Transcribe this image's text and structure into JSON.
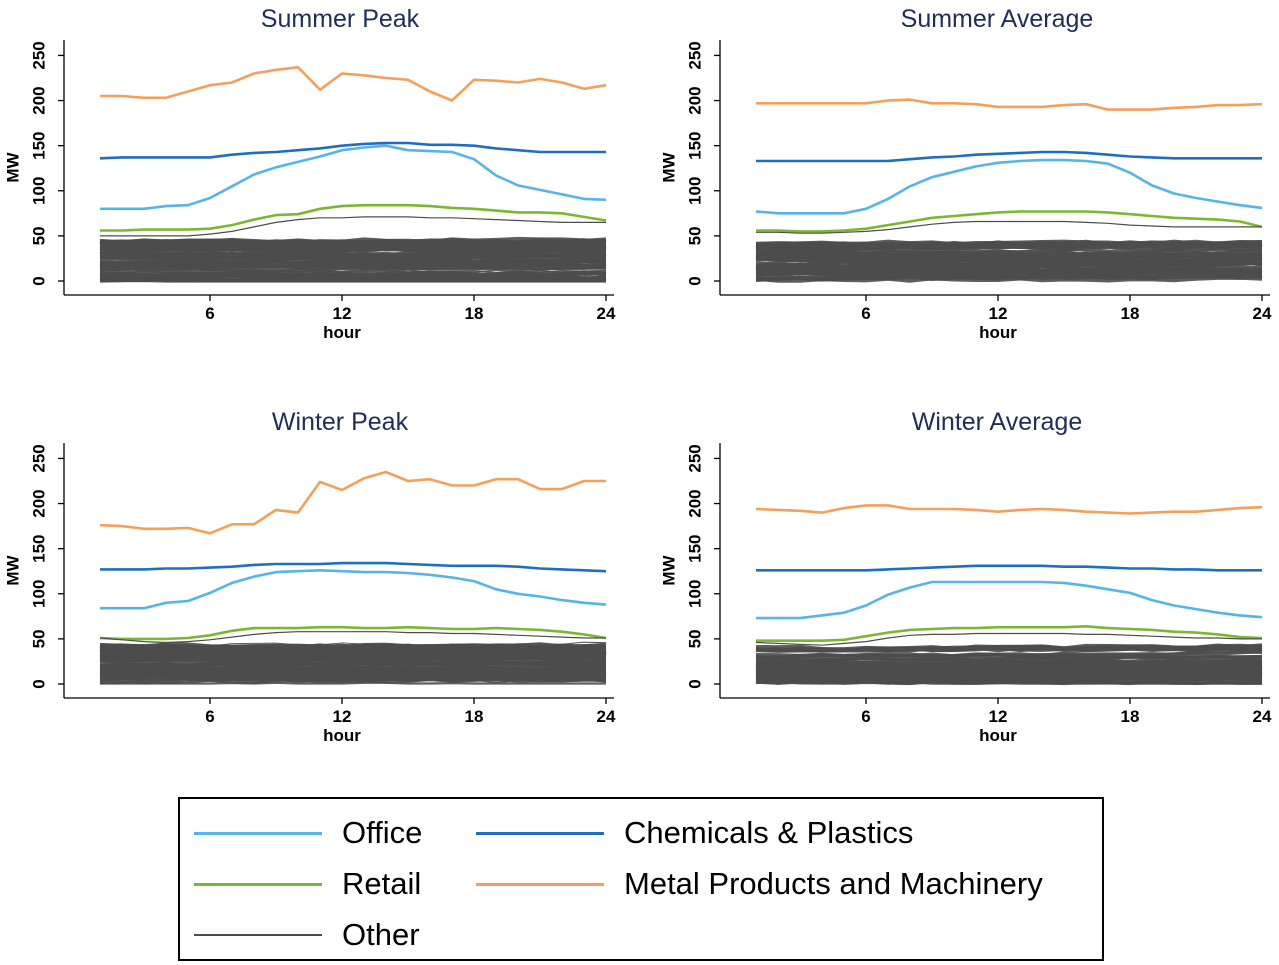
{
  "colors": {
    "Office": "#56b4e9",
    "Retail": "#7cb82f",
    "Other": "#4d4d4d",
    "Chemicals & Plastics": "#1f6fbf",
    "Metal Products and Machinery": "#f5a05a",
    "title": "#1e2d5c"
  },
  "legend": {
    "items": [
      {
        "label": "Office",
        "color": "#56b4e9"
      },
      {
        "label": "Retail",
        "color": "#7cb82f"
      },
      {
        "label": "Other",
        "color": "#4d4d4d"
      },
      {
        "label": "Chemicals & Plastics",
        "color": "#1f6fbf"
      },
      {
        "label": "Metal Products and Machinery",
        "color": "#f5a05a"
      }
    ]
  },
  "chart_data": [
    {
      "type": "line",
      "title": "Summer Peak",
      "xlabel": "hour",
      "ylabel": "MW",
      "xlim": [
        0,
        24
      ],
      "ylim": [
        0,
        250
      ],
      "xticks": [
        6,
        12,
        18,
        24
      ],
      "yticks": [
        0,
        50,
        100,
        150,
        200,
        250
      ],
      "grid": false,
      "x": [
        1,
        2,
        3,
        4,
        5,
        6,
        7,
        8,
        9,
        10,
        11,
        12,
        13,
        14,
        15,
        16,
        17,
        18,
        19,
        20,
        21,
        22,
        23,
        24
      ],
      "series": [
        {
          "name": "Metal Products and Machinery",
          "values": [
            205,
            205,
            203,
            203,
            210,
            217,
            220,
            230,
            234,
            237,
            212,
            230,
            228,
            225,
            223,
            210,
            200,
            223,
            222,
            220,
            224,
            220,
            213,
            217
          ]
        },
        {
          "name": "Chemicals & Plastics",
          "values": [
            136,
            137,
            137,
            137,
            137,
            137,
            140,
            142,
            143,
            145,
            147,
            150,
            152,
            153,
            153,
            151,
            151,
            150,
            147,
            145,
            143,
            143,
            143,
            143
          ]
        },
        {
          "name": "Office",
          "values": [
            80,
            80,
            80,
            83,
            84,
            92,
            105,
            118,
            126,
            132,
            138,
            145,
            148,
            150,
            145,
            144,
            143,
            135,
            117,
            106,
            101,
            96,
            91,
            90
          ]
        },
        {
          "name": "Retail",
          "values": [
            56,
            56,
            57,
            57,
            57,
            58,
            62,
            68,
            73,
            74,
            80,
            83,
            84,
            84,
            84,
            83,
            81,
            80,
            78,
            76,
            76,
            75,
            71,
            67
          ]
        },
        {
          "name": "Other",
          "values": [
            50,
            50,
            50,
            50,
            50,
            52,
            55,
            60,
            65,
            68,
            70,
            70,
            71,
            71,
            71,
            70,
            70,
            69,
            68,
            67,
            66,
            65,
            65,
            65
          ]
        }
      ],
      "other_band_max": 45
    },
    {
      "type": "line",
      "title": "Summer Average",
      "xlabel": "hour",
      "ylabel": "MW",
      "xlim": [
        0,
        24
      ],
      "ylim": [
        0,
        250
      ],
      "xticks": [
        6,
        12,
        18,
        24
      ],
      "yticks": [
        0,
        50,
        100,
        150,
        200,
        250
      ],
      "grid": false,
      "x": [
        1,
        2,
        3,
        4,
        5,
        6,
        7,
        8,
        9,
        10,
        11,
        12,
        13,
        14,
        15,
        16,
        17,
        18,
        19,
        20,
        21,
        22,
        23,
        24
      ],
      "series": [
        {
          "name": "Metal Products and Machinery",
          "values": [
            197,
            197,
            197,
            197,
            197,
            197,
            200,
            201,
            197,
            197,
            196,
            193,
            193,
            193,
            195,
            196,
            190,
            190,
            190,
            192,
            193,
            195,
            195,
            196
          ]
        },
        {
          "name": "Chemicals & Plastics",
          "values": [
            133,
            133,
            133,
            133,
            133,
            133,
            133,
            135,
            137,
            138,
            140,
            141,
            142,
            143,
            143,
            142,
            140,
            138,
            137,
            136,
            136,
            136,
            136,
            136
          ]
        },
        {
          "name": "Office",
          "values": [
            77,
            75,
            75,
            75,
            75,
            80,
            91,
            105,
            115,
            121,
            127,
            131,
            133,
            134,
            134,
            133,
            130,
            120,
            106,
            97,
            92,
            88,
            84,
            81
          ]
        },
        {
          "name": "Retail",
          "values": [
            56,
            56,
            55,
            55,
            56,
            58,
            62,
            66,
            70,
            72,
            74,
            76,
            77,
            77,
            77,
            77,
            76,
            74,
            72,
            70,
            69,
            68,
            66,
            60
          ]
        },
        {
          "name": "Other",
          "values": [
            54,
            54,
            53,
            53,
            54,
            55,
            57,
            60,
            63,
            65,
            66,
            66,
            66,
            66,
            66,
            65,
            64,
            62,
            61,
            60,
            60,
            60,
            60,
            60
          ]
        }
      ],
      "other_band_max": 42
    },
    {
      "type": "line",
      "title": "Winter Peak",
      "xlabel": "hour",
      "ylabel": "MW",
      "xlim": [
        0,
        24
      ],
      "ylim": [
        0,
        250
      ],
      "xticks": [
        6,
        12,
        18,
        24
      ],
      "yticks": [
        0,
        50,
        100,
        150,
        200,
        250
      ],
      "grid": false,
      "x": [
        1,
        2,
        3,
        4,
        5,
        6,
        7,
        8,
        9,
        10,
        11,
        12,
        13,
        14,
        15,
        16,
        17,
        18,
        19,
        20,
        21,
        22,
        23,
        24
      ],
      "series": [
        {
          "name": "Metal Products and Machinery",
          "values": [
            176,
            175,
            172,
            172,
            173,
            167,
            177,
            177,
            193,
            190,
            224,
            215,
            228,
            235,
            225,
            227,
            220,
            220,
            227,
            227,
            216,
            216,
            225,
            225
          ]
        },
        {
          "name": "Chemicals & Plastics",
          "values": [
            127,
            127,
            127,
            128,
            128,
            129,
            130,
            132,
            133,
            133,
            133,
            134,
            134,
            134,
            133,
            132,
            131,
            131,
            131,
            130,
            128,
            127,
            126,
            125
          ]
        },
        {
          "name": "Office",
          "values": [
            84,
            84,
            84,
            90,
            92,
            101,
            112,
            119,
            124,
            125,
            126,
            125,
            124,
            124,
            123,
            121,
            118,
            114,
            105,
            100,
            97,
            93,
            90,
            88
          ]
        },
        {
          "name": "Retail",
          "values": [
            51,
            50,
            50,
            50,
            51,
            54,
            59,
            62,
            62,
            62,
            63,
            63,
            62,
            62,
            63,
            62,
            61,
            61,
            62,
            61,
            60,
            58,
            55,
            51
          ]
        },
        {
          "name": "Other",
          "values": [
            51,
            49,
            47,
            46,
            47,
            49,
            52,
            55,
            57,
            58,
            58,
            58,
            58,
            58,
            57,
            57,
            56,
            56,
            55,
            54,
            53,
            52,
            51,
            51
          ]
        }
      ],
      "other_band_max": 44
    },
    {
      "type": "line",
      "title": "Winter Average",
      "xlabel": "hour",
      "ylabel": "MW",
      "xlim": [
        0,
        24
      ],
      "ylim": [
        0,
        250
      ],
      "xticks": [
        6,
        12,
        18,
        24
      ],
      "yticks": [
        0,
        50,
        100,
        150,
        200,
        250
      ],
      "grid": false,
      "x": [
        1,
        2,
        3,
        4,
        5,
        6,
        7,
        8,
        9,
        10,
        11,
        12,
        13,
        14,
        15,
        16,
        17,
        18,
        19,
        20,
        21,
        22,
        23,
        24
      ],
      "series": [
        {
          "name": "Metal Products and Machinery",
          "values": [
            194,
            193,
            192,
            190,
            195,
            198,
            198,
            194,
            194,
            194,
            193,
            191,
            193,
            194,
            193,
            191,
            190,
            189,
            190,
            191,
            191,
            193,
            195,
            196
          ]
        },
        {
          "name": "Chemicals & Plastics",
          "values": [
            126,
            126,
            126,
            126,
            126,
            126,
            127,
            128,
            129,
            130,
            131,
            131,
            131,
            131,
            130,
            130,
            129,
            128,
            128,
            127,
            127,
            126,
            126,
            126
          ]
        },
        {
          "name": "Office",
          "values": [
            73,
            73,
            73,
            76,
            79,
            87,
            99,
            107,
            113,
            113,
            113,
            113,
            113,
            113,
            112,
            109,
            105,
            101,
            93,
            87,
            83,
            79,
            76,
            74
          ]
        },
        {
          "name": "Retail",
          "values": [
            48,
            48,
            48,
            48,
            49,
            53,
            57,
            60,
            61,
            62,
            62,
            63,
            63,
            63,
            63,
            64,
            62,
            61,
            60,
            58,
            57,
            55,
            52,
            51
          ]
        },
        {
          "name": "Other",
          "values": [
            46,
            45,
            44,
            43,
            45,
            47,
            51,
            54,
            55,
            55,
            56,
            56,
            56,
            56,
            56,
            55,
            55,
            54,
            53,
            52,
            51,
            51,
            50,
            50
          ]
        }
      ],
      "other_band_max": 40
    }
  ]
}
